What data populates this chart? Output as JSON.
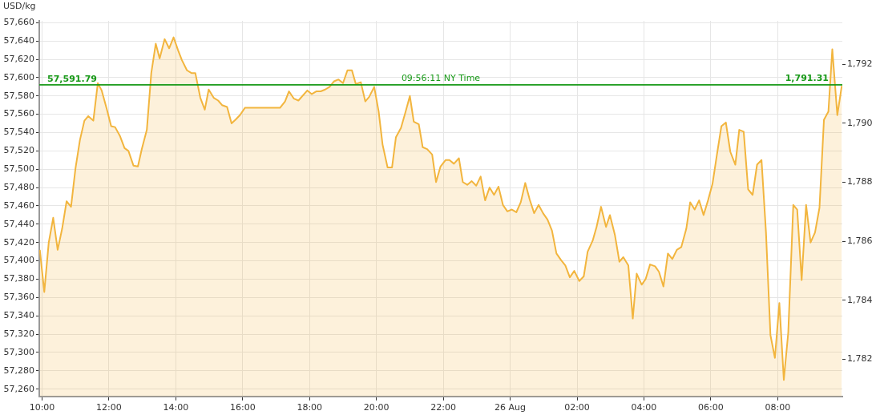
{
  "chart_data": {
    "type": "area",
    "ylabel": "USD/kg",
    "annotations": [
      "09:56:11 NY Time"
    ],
    "x": [
      "--08-25T09:56",
      "--08-25T10:04",
      "--08-25T10:12",
      "--08-25T10:20",
      "--08-25T10:28",
      "--08-25T10:36",
      "--08-25T10:44",
      "--08-25T10:52",
      "--08-25T11:00",
      "--08-25T11:08",
      "--08-25T11:16",
      "--08-25T11:23",
      "--08-25T11:32",
      "--08-25T11:40",
      "--08-25T11:47",
      "--08-25T11:56",
      "--08-25T12:04",
      "--08-25T12:11",
      "--08-25T12:20",
      "--08-25T12:28",
      "--08-25T12:35",
      "--08-25T12:44",
      "--08-25T12:52",
      "--08-25T12:59",
      "--08-25T13:08",
      "--08-25T13:16",
      "--08-25T13:24",
      "--08-25T13:31",
      "--08-25T13:40",
      "--08-25T13:48",
      "--08-25T13:56",
      "--08-25T14:04",
      "--08-25T14:11",
      "--08-25T14:20",
      "--08-25T14:28",
      "--08-25T14:35",
      "--08-25T14:44",
      "--08-25T14:52",
      "--08-25T14:59",
      "--08-25T15:08",
      "--08-25T15:16",
      "--08-25T15:23",
      "--08-25T15:32",
      "--08-25T15:40",
      "--08-25T15:47",
      "--08-25T15:55",
      "--08-25T16:04",
      "--08-25T17:07",
      "--08-25T17:16",
      "--08-25T17:23",
      "--08-25T17:32",
      "--08-25T17:40",
      "--08-25T17:56",
      "--08-25T18:04",
      "--08-25T18:12",
      "--08-25T18:20",
      "--08-25T18:28",
      "--08-25T18:36",
      "--08-25T18:44",
      "--08-25T18:52",
      "--08-25T19:00",
      "--08-25T19:08",
      "--08-25T19:16",
      "--08-25T19:23",
      "--08-25T19:32",
      "--08-25T19:40",
      "--08-25T19:47",
      "--08-25T19:56",
      "--08-25T20:04",
      "--08-25T20:11",
      "--08-25T20:20",
      "--08-25T20:28",
      "--08-25T20:35",
      "--08-25T20:44",
      "--08-25T20:52",
      "--08-25T21:00",
      "--08-25T21:07",
      "--08-25T21:16",
      "--08-25T21:23",
      "--08-25T21:31",
      "--08-25T21:40",
      "--08-25T21:47",
      "--08-25T21:55",
      "--08-25T22:04",
      "--08-25T22:11",
      "--08-25T22:19",
      "--08-25T22:28",
      "--08-25T22:35",
      "--08-25T22:43",
      "--08-25T22:51",
      "--08-25T22:59",
      "--08-25T23:07",
      "--08-25T23:15",
      "--08-25T23:23",
      "--08-25T23:31",
      "--08-25T23:39",
      "--08-25T23:47",
      "--08-25T23:55",
      "--08-26T00:03",
      "--08-26T00:11",
      "--08-26T00:19",
      "--08-26T00:27",
      "--08-26T00:35",
      "--08-26T00:43",
      "--08-26T00:51",
      "--08-26T00:59",
      "--08-26T01:07",
      "--08-26T01:15",
      "--08-26T01:23",
      "--08-26T01:31",
      "--08-26T01:39",
      "--08-26T01:47",
      "--08-26T01:55",
      "--08-26T02:04",
      "--08-26T02:12",
      "--08-26T02:19",
      "--08-26T02:28",
      "--08-26T02:35",
      "--08-26T02:43",
      "--08-26T02:52",
      "--08-26T02:59",
      "--08-26T03:08",
      "--08-26T03:16",
      "--08-26T03:23",
      "--08-26T03:32",
      "--08-26T03:40",
      "--08-26T03:47",
      "--08-26T03:56",
      "--08-26T04:03",
      "--08-26T04:11",
      "--08-26T04:20",
      "--08-26T04:27",
      "--08-26T04:35",
      "--08-26T04:43",
      "--08-26T04:51",
      "--08-26T04:59",
      "--08-26T05:07",
      "--08-26T05:16",
      "--08-26T05:23",
      "--08-26T05:31",
      "--08-26T05:39",
      "--08-26T05:47",
      "--08-26T05:55",
      "--08-26T06:03",
      "--08-26T06:11",
      "--08-26T06:19",
      "--08-26T06:27",
      "--08-26T06:35",
      "--08-26T06:44",
      "--08-26T06:51",
      "--08-26T06:59",
      "--08-26T07:07",
      "--08-26T07:15",
      "--08-26T07:23",
      "--08-26T07:31",
      "--08-26T07:39",
      "--08-26T07:47",
      "--08-26T07:55",
      "--08-26T08:03",
      "--08-26T08:11",
      "--08-26T08:19",
      "--08-26T08:28",
      "--08-26T08:35",
      "--08-26T08:43",
      "--08-26T08:51",
      "--08-26T08:59",
      "--08-26T09:07",
      "--08-26T09:15",
      "--08-26T09:23",
      "--08-26T09:31",
      "--08-26T09:38",
      "--08-26T09:47",
      "--08-26T09:55"
    ],
    "series": [
      {
        "color": "#f2b53e",
        "values": [
          57412,
          57366,
          57420,
          57447,
          57412,
          57435,
          57465,
          57459,
          57501,
          57532,
          57553,
          57558,
          57553,
          57594,
          57586,
          57566,
          57547,
          57546,
          57536,
          57523,
          57520,
          57504,
          57503,
          57522,
          57543,
          57605,
          57637,
          57621,
          57642,
          57632,
          57644,
          57630,
          57619,
          57608,
          57605,
          57605,
          57578,
          57565,
          57587,
          57578,
          57575,
          57570,
          57568,
          57550,
          57554,
          57559,
          57567,
          57567,
          57574,
          57585,
          57577,
          57575,
          57586,
          57582,
          57585,
          57585,
          57587,
          57590,
          57596,
          57598,
          57594,
          57608,
          57608,
          57593,
          57595,
          57574,
          57579,
          57590,
          57563,
          57527,
          57502,
          57502,
          57535,
          57545,
          57562,
          57580,
          57552,
          57549,
          57524,
          57522,
          57516,
          57486,
          57503,
          57510,
          57510,
          57506,
          57512,
          57486,
          57483,
          57487,
          57482,
          57492,
          57466,
          57480,
          57472,
          57481,
          57461,
          57454,
          57456,
          57453,
          57464,
          57485,
          57467,
          57452,
          57461,
          57452,
          57445,
          57433,
          57408,
          57401,
          57395,
          57382,
          57389,
          57378,
          57383,
          57410,
          57422,
          57437,
          57459,
          57437,
          57450,
          57428,
          57399,
          57404,
          57395,
          57337,
          57386,
          57374,
          57380,
          57396,
          57394,
          57388,
          57372,
          57408,
          57402,
          57412,
          57415,
          57435,
          57464,
          57456,
          57466,
          57450,
          57466,
          57484,
          57516,
          57547,
          57551,
          57519,
          57505,
          57543,
          57541,
          57478,
          57472,
          57505,
          57510,
          57431,
          57319,
          57294,
          57354,
          57270,
          57322,
          57461,
          57456,
          57379,
          57461,
          57420,
          57431,
          57458,
          57554,
          57563,
          57631,
          57559,
          57591
        ]
      }
    ],
    "xlim": [
      "--08-25T09:55",
      "--08-26T09:56"
    ],
    "xticks": [
      {
        "value": "--08-25T10:00",
        "label": "10:00"
      },
      {
        "value": "--08-25T12:00",
        "label": "12:00"
      },
      {
        "value": "--08-25T14:00",
        "label": "14:00"
      },
      {
        "value": "--08-25T16:00",
        "label": "16:00"
      },
      {
        "value": "--08-25T18:00",
        "label": "18:00"
      },
      {
        "value": "--08-25T20:00",
        "label": "20:00"
      },
      {
        "value": "--08-25T22:00",
        "label": "22:00"
      },
      {
        "value": "--08-26T00:00",
        "label": "26 Aug"
      },
      {
        "value": "--08-26T02:00",
        "label": "02:00"
      },
      {
        "value": "--08-26T04:00",
        "label": "04:00"
      },
      {
        "value": "--08-26T06:00",
        "label": "06:00"
      },
      {
        "value": "--08-26T08:00",
        "label": "08:00"
      }
    ],
    "ylim": [
      57252,
      57662
    ],
    "yticks": [
      {
        "value": 57260,
        "label": "57,260"
      },
      {
        "value": 57280,
        "label": "57,280"
      },
      {
        "value": 57300,
        "label": "57,300"
      },
      {
        "value": 57320,
        "label": "57,320"
      },
      {
        "value": 57340,
        "label": "57,340"
      },
      {
        "value": 57360,
        "label": "57,360"
      },
      {
        "value": 57380,
        "label": "57,380"
      },
      {
        "value": 57400,
        "label": "57,400"
      },
      {
        "value": 57420,
        "label": "57,420"
      },
      {
        "value": 57440,
        "label": "57,440"
      },
      {
        "value": 57460,
        "label": "57,460"
      },
      {
        "value": 57480,
        "label": "57,480"
      },
      {
        "value": 57500,
        "label": "57,500"
      },
      {
        "value": 57520,
        "label": "57,520"
      },
      {
        "value": 57540,
        "label": "57,540"
      },
      {
        "value": 57560,
        "label": "57,560"
      },
      {
        "value": 57580,
        "label": "57,580"
      },
      {
        "value": 57600,
        "label": "57,600"
      },
      {
        "value": 57620,
        "label": "57,620"
      },
      {
        "value": 57640,
        "label": "57,640"
      },
      {
        "value": 57660,
        "label": "57,660"
      }
    ],
    "y2lim": [
      1780.74,
      1793.47
    ],
    "y2ticks": [
      {
        "value": 1782,
        "label": "1,782"
      },
      {
        "value": 1784,
        "label": "1,784"
      },
      {
        "value": 1786,
        "label": "1,786"
      },
      {
        "value": 1788,
        "label": "1,788"
      },
      {
        "value": 1790,
        "label": "1,790"
      },
      {
        "value": 1792,
        "label": "1,792"
      }
    ],
    "ref_lines": [
      {
        "axis": "y",
        "value": 57591.79,
        "label": "57,591.79",
        "color": "#1a9a1a"
      },
      {
        "axis": "y2",
        "value": 1791.31,
        "label": "1,791.31",
        "color": "#1a9a1a"
      }
    ],
    "grid": true,
    "legend": false,
    "marker": "none",
    "line_style": "solid"
  }
}
